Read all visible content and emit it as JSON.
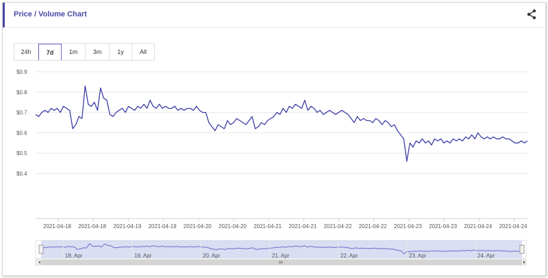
{
  "header": {
    "title": "Price / Volume Chart",
    "share_icon": "share-icon"
  },
  "ranges": {
    "buttons": [
      "24h",
      "7d",
      "1m",
      "3m",
      "1y",
      "All"
    ],
    "active": "7d"
  },
  "colors": {
    "accent": "#4a4aa6",
    "line": "#3c3ca8",
    "title": "#4a4aa6",
    "navigator_fill": "#c9d0ee",
    "navigator_line": "#6b6bc7"
  },
  "chart_data": {
    "type": "line",
    "title": "",
    "xlabel": "",
    "ylabel": "",
    "ylim": [
      0.4,
      0.9
    ],
    "y_ticks": [
      "$0.9",
      "$0.8",
      "$0.7",
      "$0.6",
      "$0.5",
      "$0.4"
    ],
    "x_ticks": [
      "2021-04-18",
      "2021-04-18",
      "2021-04-19",
      "2021-04-19",
      "2021-04-20",
      "2021-04-20",
      "2021-04-21",
      "2021-04-21",
      "2021-04-22",
      "2021-04-22",
      "2021-04-23",
      "2021-04-23",
      "2021-04-24",
      "2021-04-24"
    ],
    "navigator_ticks": [
      "18. Apr",
      "19. Apr",
      "20. Apr",
      "21. Apr",
      "22. Apr",
      "23. Apr",
      "24. Apr"
    ],
    "grid": true,
    "series": [
      {
        "values": [
          0.69,
          0.68,
          0.7,
          0.71,
          0.7,
          0.72,
          0.71,
          0.72,
          0.7,
          0.73,
          0.72,
          0.71,
          0.62,
          0.64,
          0.68,
          0.67,
          0.83,
          0.74,
          0.73,
          0.75,
          0.71,
          0.82,
          0.77,
          0.76,
          0.69,
          0.68,
          0.7,
          0.71,
          0.72,
          0.7,
          0.73,
          0.72,
          0.71,
          0.73,
          0.72,
          0.74,
          0.72,
          0.76,
          0.73,
          0.72,
          0.74,
          0.72,
          0.73,
          0.72,
          0.72,
          0.73,
          0.71,
          0.72,
          0.71,
          0.72,
          0.72,
          0.71,
          0.73,
          0.71,
          0.7,
          0.7,
          0.65,
          0.63,
          0.61,
          0.64,
          0.63,
          0.62,
          0.66,
          0.64,
          0.65,
          0.67,
          0.66,
          0.65,
          0.64,
          0.66,
          0.68,
          0.62,
          0.63,
          0.65,
          0.64,
          0.66,
          0.67,
          0.68,
          0.7,
          0.69,
          0.72,
          0.7,
          0.73,
          0.72,
          0.74,
          0.73,
          0.72,
          0.76,
          0.71,
          0.73,
          0.72,
          0.7,
          0.71,
          0.69,
          0.7,
          0.71,
          0.7,
          0.69,
          0.7,
          0.71,
          0.7,
          0.69,
          0.67,
          0.65,
          0.68,
          0.66,
          0.67,
          0.66,
          0.66,
          0.65,
          0.67,
          0.66,
          0.64,
          0.66,
          0.65,
          0.63,
          0.64,
          0.61,
          0.59,
          0.57,
          0.46,
          0.55,
          0.53,
          0.56,
          0.55,
          0.57,
          0.55,
          0.56,
          0.54,
          0.57,
          0.56,
          0.57,
          0.55,
          0.56,
          0.55,
          0.57,
          0.56,
          0.57,
          0.56,
          0.58,
          0.57,
          0.59,
          0.57,
          0.6,
          0.58,
          0.57,
          0.58,
          0.57,
          0.58,
          0.57,
          0.57,
          0.58,
          0.57,
          0.57,
          0.56,
          0.55,
          0.55,
          0.56,
          0.55,
          0.56
        ]
      }
    ]
  }
}
